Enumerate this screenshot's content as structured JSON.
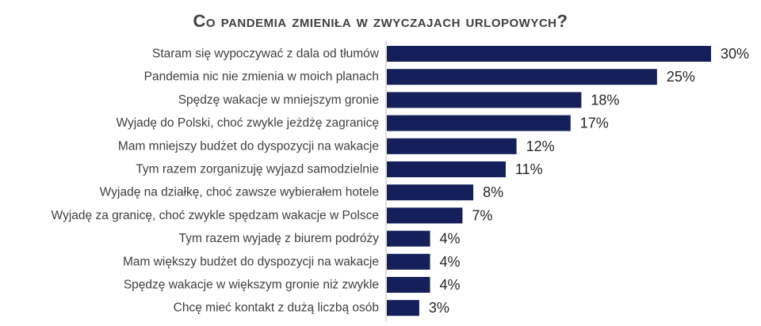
{
  "chart_data": {
    "type": "bar",
    "orientation": "horizontal",
    "title": "Co pandemia zmieniła w zwyczajach urlopowych?",
    "categories": [
      "Staram się wypoczywać z dala od tłumów",
      "Pandemia nic nie zmienia w moich planach",
      "Spędzę wakacje w mniejszym gronie",
      "Wyjadę do Polski, choć zwykle jeżdżę zagranicę",
      "Mam mniejszy budżet do dyspozycji na wakacje",
      "Tym razem zorganizuję wyjazd samodzielnie",
      "Wyjadę na działkę, choć zawsze wybierałem hotele",
      "Wyjadę za granicę, choć zwykle spędzam wakacje w Polsce",
      "Tym razem wyjadę z biurem podróży",
      "Mam większy budżet do dyspozycji na wakacje",
      "Spędzę wakacje w większym gronie niż zwykle",
      "Chcę mieć kontakt z dużą liczbą osób"
    ],
    "values": [
      30,
      25,
      18,
      17,
      12,
      11,
      8,
      7,
      4,
      4,
      4,
      3
    ],
    "value_labels": [
      "30%",
      "25%",
      "18%",
      "17%",
      "12%",
      "11%",
      "8%",
      "7%",
      "4%",
      "4%",
      "4%",
      "3%"
    ],
    "xlim": [
      0,
      30
    ],
    "grid": false,
    "legend": "none",
    "bar_color": "#15205a"
  }
}
